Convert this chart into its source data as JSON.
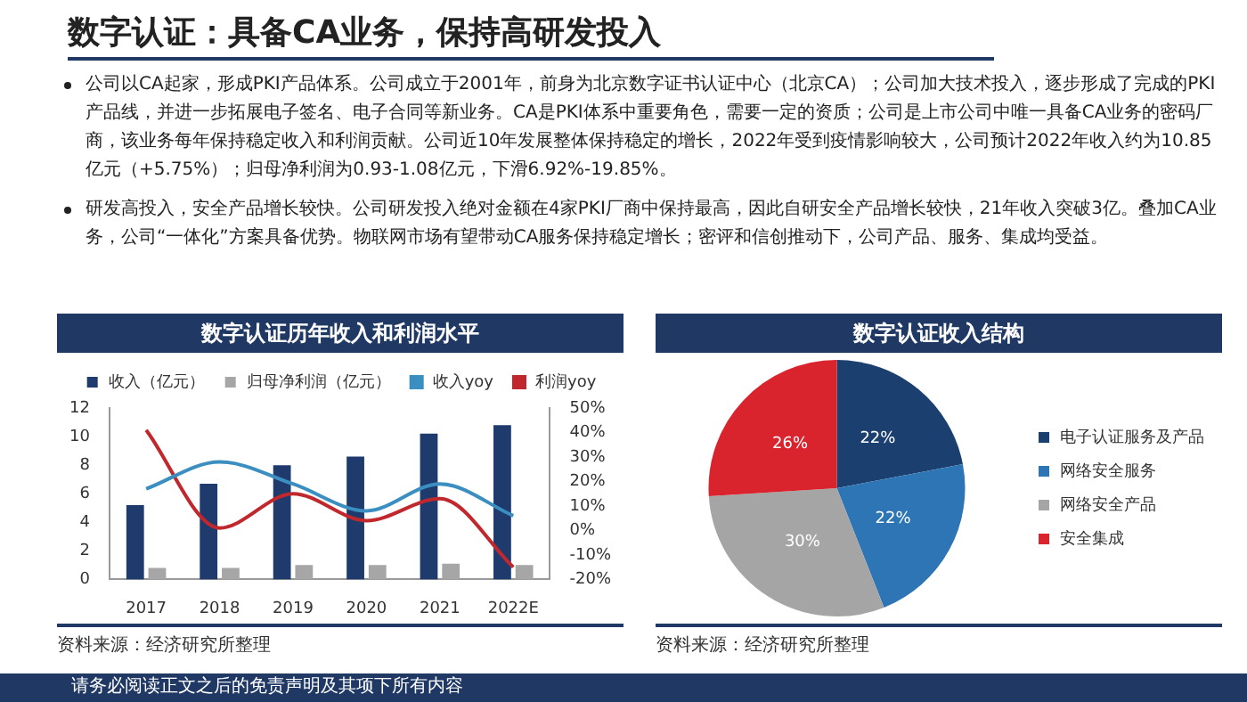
{
  "chart_data": [
    {
      "type": "other",
      "title": "数字认证：具备CA业务，保持高研发投入",
      "annotations": [
        "公司以CA起家，形成PKI产品体系。公司成立于2001年，前身为北京数字证书认证中心（北京CA）；公司加大技术投入，逐步形成了完成的PKI产品线，并进一步拓展电子签名、电子合同等新业务。CA是PKI体系中重要角色，需要一定的资质；公司是上市公司中唯一具备CA业务的密码厂商，该业务每年保持稳定收入和利润贡献。公司近10年发展整体保持稳定的增长，2022年受到疫情影响较大，公司预计2022年收入约为10.85亿元（+5.75%）；归母净利润为0.93-1.08亿元，下滑6.92%-19.85%。",
        "研发高投入，安全产品增长较快。公司研发投入绝对金额在4家PKI厂商中保持最高，因此自研安全产品增长较快，21年收入突破3亿。叠加CA业务，公司“一体化”方案具备优势。物联网市场有望带动CA服务保持稳定增长；密评和信创推动下，公司产品、服务、集成均受益。",
        "请务必阅读正文之后的免责声明及其项下所有内容"
      ]
    },
    {
      "type": "bar",
      "title": "数字认证历年收入和利润水平",
      "categories": [
        "2017",
        "2018",
        "2019",
        "2020",
        "2021",
        "2022E"
      ],
      "series": [
        {
          "name": "收入（亿元）",
          "color": "#1f3b6e",
          "values": [
            5.2,
            6.7,
            8.0,
            8.6,
            10.2,
            10.8
          ]
        },
        {
          "name": "归母净利润（亿元）",
          "color": "#a6a6a6",
          "values": [
            0.8,
            0.8,
            1.0,
            1.0,
            1.1,
            1.0
          ]
        },
        {
          "name": "收入yoy",
          "type": "line",
          "axis": "y2",
          "color": "#3a8fc0",
          "values": [
            17,
            28,
            19,
            8,
            19,
            6
          ]
        },
        {
          "name": "利润yoy",
          "type": "line",
          "axis": "y2",
          "color": "#c0282d",
          "values": [
            41,
            1,
            15,
            4,
            13,
            -15
          ]
        }
      ],
      "ylim": [
        0,
        12
      ],
      "yticks": [
        0,
        2,
        4,
        6,
        8,
        10,
        12
      ],
      "y2lim": [
        -20,
        50
      ],
      "y2ticks": [
        {
          "value": -20,
          "label": "-20%"
        },
        {
          "value": -10,
          "label": "-10%"
        },
        {
          "value": 0,
          "label": "0%"
        },
        {
          "value": 10,
          "label": "10%"
        },
        {
          "value": 20,
          "label": "20%"
        },
        {
          "value": 30,
          "label": "30%"
        },
        {
          "value": 40,
          "label": "40%"
        },
        {
          "value": 50,
          "label": "50%"
        }
      ],
      "legend": "top",
      "marker": "none",
      "annotations": [
        "资料来源：经济研究所整理"
      ]
    },
    {
      "type": "pie",
      "title": "数字认证收入结构",
      "categories": [
        "电子认证服务及产品",
        "网络安全服务",
        "网络安全产品",
        "安全集成"
      ],
      "values": [
        22,
        22,
        30,
        26
      ],
      "colors": [
        "#1b3f6e",
        "#2e75b6",
        "#a5a5a5",
        "#d9232d"
      ],
      "value_labels": [
        "22%",
        "22%",
        "30%",
        "26%"
      ],
      "legend": "right",
      "annotations": [
        "资料来源：经济研究所整理"
      ]
    }
  ]
}
